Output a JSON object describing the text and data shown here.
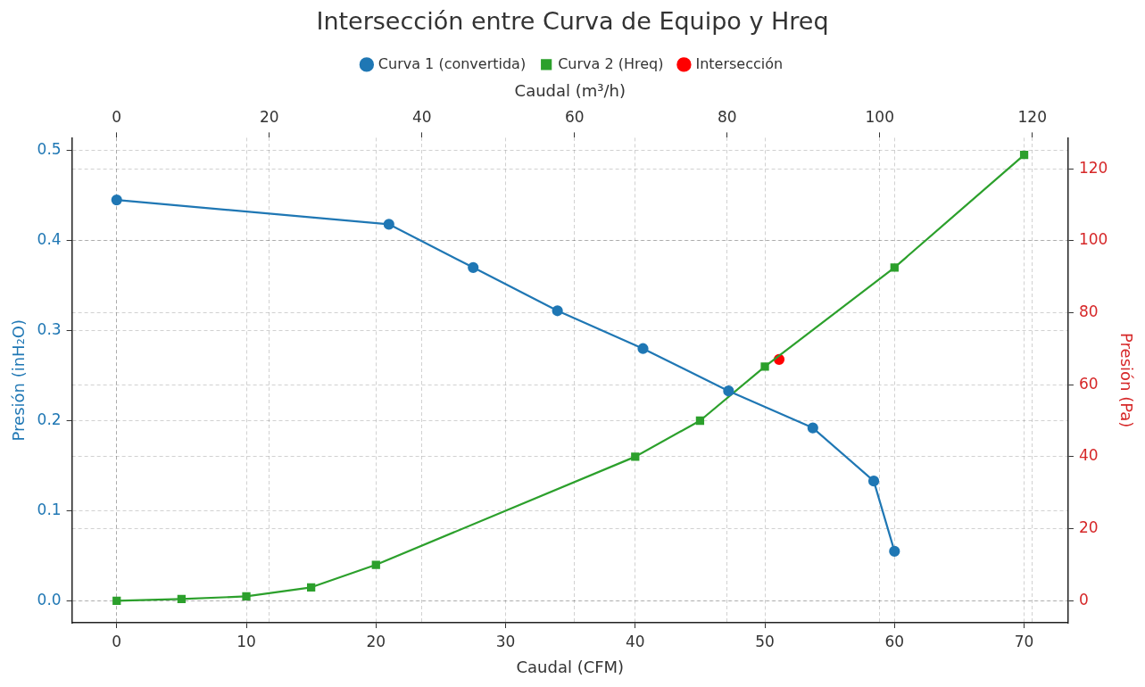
{
  "chart_data": {
    "type": "line",
    "title": "Intersección entre Curva de Equipo y Hreq",
    "xlabel": "Caudal (CFM)",
    "ylabel": "Presión (inH₂O)",
    "y2label": "Presión (Pa)",
    "x2label": "Caudal (m³/h)",
    "xlim": [
      -3.45,
      73.4
    ],
    "xticks": [
      0,
      10,
      20,
      30,
      40,
      50,
      60,
      70
    ],
    "x2lim": [
      -5.86,
      124.7
    ],
    "x2ticks": [
      0,
      20,
      40,
      60,
      80,
      100,
      120
    ],
    "ylim": [
      -0.0243,
      0.514
    ],
    "yticks": [
      {
        "value": 0,
        "label": "0.0"
      },
      0.1,
      0.2,
      0.3,
      0.4,
      0.5
    ],
    "y2lim": [
      -6.1,
      128.6
    ],
    "y2ticks": [
      0,
      20,
      40,
      60,
      80,
      100,
      120
    ],
    "grid": true,
    "legend": "top",
    "series": [
      {
        "name": "Curva 1 (convertida)",
        "marker": "circle",
        "color": "#1f77b4",
        "x": [
          0,
          21,
          27.5,
          34,
          40.6,
          47.2,
          53.7,
          58.4,
          60
        ],
        "values": [
          0.445,
          0.418,
          0.37,
          0.322,
          0.28,
          0.233,
          0.192,
          0.133,
          0.055
        ]
      },
      {
        "name": "Curva 2 (Hreq)",
        "marker": "square",
        "color": "#2ca02c",
        "x": [
          0,
          5,
          10,
          15,
          20,
          40,
          45,
          50,
          60,
          70
        ],
        "values": [
          0,
          0.002,
          0.005,
          0.015,
          0.04,
          0.16,
          0.2,
          0.26,
          0.37,
          0.495
        ]
      },
      {
        "name": "Intersección",
        "type": "scatter",
        "marker": "circle",
        "color": "#ff0000",
        "x": [
          51.1
        ],
        "values": [
          0.268
        ]
      }
    ]
  }
}
